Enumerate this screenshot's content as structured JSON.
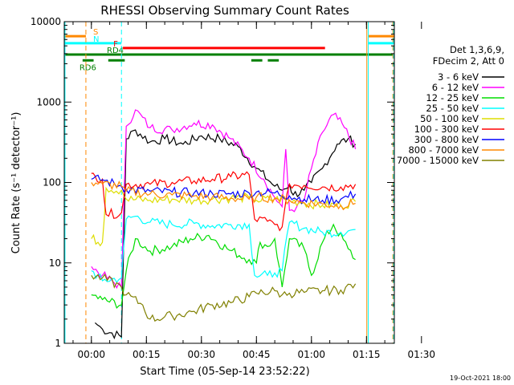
{
  "chart_data": {
    "type": "line",
    "title": "RHESSI Observing Summary Count Rates",
    "xlabel": "Start Time (05-Sep-14 23:52:22)",
    "ylabel": "Count Rate (s⁻¹ detector⁻¹)",
    "yscale": "log",
    "ylim": [
      1,
      10000
    ],
    "xlim_minutes_after_0000": [
      -7.4,
      82.6
    ],
    "y_ticks": [
      "1",
      "10",
      "100",
      "1000",
      "10000"
    ],
    "x_ticks": [
      {
        "m": 0,
        "label": "00:00"
      },
      {
        "m": 15,
        "label": "00:15"
      },
      {
        "m": 30,
        "label": "00:30"
      },
      {
        "m": 45,
        "label": "00:45"
      },
      {
        "m": 60,
        "label": "01:00"
      },
      {
        "m": 75,
        "label": "01:15"
      },
      {
        "m": 90,
        "label": "01:30"
      }
    ],
    "legend": {
      "header": [
        "Det 1,3,6,9,",
        "FDecim 2, Att 0"
      ],
      "placement": "right"
    },
    "footer_date": "19-Oct-2021 18:00",
    "series": [
      {
        "name": "3 - 6 keV",
        "color": "#000000",
        "points": [
          [
            1,
            1.8
          ],
          [
            3,
            1.5
          ],
          [
            8.2,
            1.2
          ],
          [
            9.5,
            350
          ],
          [
            12,
            450
          ],
          [
            16,
            320
          ],
          [
            20,
            350
          ],
          [
            25,
            300
          ],
          [
            30,
            380
          ],
          [
            35,
            350
          ],
          [
            40,
            280
          ],
          [
            45,
            150
          ],
          [
            50,
            90
          ],
          [
            52,
            80
          ],
          [
            54,
            95
          ],
          [
            55,
            70
          ],
          [
            58,
            80
          ],
          [
            60,
            100
          ],
          [
            63,
            150
          ],
          [
            67,
            300
          ],
          [
            70,
            350
          ],
          [
            72,
            300
          ]
        ]
      },
      {
        "name": "6 - 12 keV",
        "color": "#ff00ff",
        "points": [
          [
            0,
            9
          ],
          [
            3,
            7
          ],
          [
            8.2,
            5
          ],
          [
            9.5,
            500
          ],
          [
            12,
            800
          ],
          [
            16,
            480
          ],
          [
            22,
            450
          ],
          [
            28,
            550
          ],
          [
            33,
            520
          ],
          [
            38,
            350
          ],
          [
            43,
            200
          ],
          [
            47,
            110
          ],
          [
            50,
            65
          ],
          [
            52,
            50
          ],
          [
            53,
            260
          ],
          [
            54,
            45
          ],
          [
            56,
            50
          ],
          [
            58,
            60
          ],
          [
            60,
            150
          ],
          [
            63,
            420
          ],
          [
            66,
            700
          ],
          [
            69,
            480
          ],
          [
            72,
            260
          ]
        ]
      },
      {
        "name": "12 - 25 keV",
        "color": "#00dd00",
        "points": [
          [
            0,
            4
          ],
          [
            3,
            3.5
          ],
          [
            8.2,
            3
          ],
          [
            9.5,
            8
          ],
          [
            12,
            20
          ],
          [
            16,
            14
          ],
          [
            22,
            16
          ],
          [
            27,
            20
          ],
          [
            32,
            22
          ],
          [
            37,
            15
          ],
          [
            43,
            11
          ],
          [
            45,
            10
          ],
          [
            46,
            18
          ],
          [
            48,
            16
          ],
          [
            50,
            20
          ],
          [
            52,
            5
          ],
          [
            54,
            20
          ],
          [
            58,
            15
          ],
          [
            60,
            7
          ],
          [
            63,
            18
          ],
          [
            66,
            30
          ],
          [
            70,
            15
          ],
          [
            72,
            11
          ]
        ]
      },
      {
        "name": "25 - 50 keV",
        "color": "#00ffff",
        "points": [
          [
            0,
            8
          ],
          [
            3,
            6
          ],
          [
            8.2,
            6.5
          ],
          [
            9.5,
            35
          ],
          [
            12,
            38
          ],
          [
            16,
            32
          ],
          [
            22,
            30
          ],
          [
            28,
            31
          ],
          [
            33,
            29
          ],
          [
            38,
            30
          ],
          [
            43,
            30
          ],
          [
            44.5,
            7
          ],
          [
            48,
            7
          ],
          [
            50,
            7.5
          ],
          [
            52,
            8
          ],
          [
            54,
            32
          ],
          [
            58,
            27
          ],
          [
            63,
            24
          ],
          [
            68,
            24
          ],
          [
            72,
            26
          ]
        ]
      },
      {
        "name": "50 - 100 keV",
        "color": "#dddd00",
        "points": [
          [
            0,
            20
          ],
          [
            3,
            18
          ],
          [
            4,
            85
          ],
          [
            8.2,
            80
          ],
          [
            9.5,
            62
          ],
          [
            16,
            60
          ],
          [
            22,
            62
          ],
          [
            28,
            60
          ],
          [
            33,
            62
          ],
          [
            38,
            64
          ],
          [
            43,
            65
          ],
          [
            45,
            60
          ],
          [
            50,
            62
          ],
          [
            54,
            60
          ],
          [
            58,
            56
          ],
          [
            63,
            52
          ],
          [
            68,
            52
          ],
          [
            72,
            58
          ]
        ]
      },
      {
        "name": "100 - 300 keV",
        "color": "#ff0000",
        "points": [
          [
            0,
            130
          ],
          [
            1,
            120
          ],
          [
            3,
            110
          ],
          [
            4,
            40
          ],
          [
            8.2,
            42
          ],
          [
            9.5,
            95
          ],
          [
            16,
            95
          ],
          [
            22,
            100
          ],
          [
            28,
            105
          ],
          [
            33,
            110
          ],
          [
            38,
            118
          ],
          [
            43,
            125
          ],
          [
            44.5,
            35
          ],
          [
            48,
            33
          ],
          [
            50,
            30
          ],
          [
            52,
            28
          ],
          [
            54,
            95
          ],
          [
            58,
            92
          ],
          [
            63,
            88
          ],
          [
            68,
            88
          ],
          [
            72,
            95
          ]
        ]
      },
      {
        "name": "300 - 800 keV",
        "color": "#0000ff",
        "points": [
          [
            0,
            110
          ],
          [
            3,
            108
          ],
          [
            8.2,
            90
          ],
          [
            9.5,
            82
          ],
          [
            16,
            78
          ],
          [
            22,
            76
          ],
          [
            28,
            74
          ],
          [
            33,
            73
          ],
          [
            38,
            72
          ],
          [
            43,
            74
          ],
          [
            45,
            76
          ],
          [
            50,
            74
          ],
          [
            54,
            68
          ],
          [
            58,
            62
          ],
          [
            63,
            60
          ],
          [
            68,
            62
          ],
          [
            72,
            72
          ]
        ]
      },
      {
        "name": "800 - 7000 keV",
        "color": "#ff8800",
        "points": [
          [
            0,
            100
          ],
          [
            3,
            96
          ],
          [
            8.2,
            90
          ],
          [
            9.5,
            78
          ],
          [
            16,
            72
          ],
          [
            22,
            70
          ],
          [
            28,
            68
          ],
          [
            33,
            66
          ],
          [
            38,
            64
          ],
          [
            43,
            62
          ],
          [
            45,
            66
          ],
          [
            50,
            64
          ],
          [
            54,
            60
          ],
          [
            58,
            56
          ],
          [
            63,
            54
          ],
          [
            68,
            52
          ],
          [
            72,
            55
          ]
        ]
      },
      {
        "name": "7000 - 15000 keV",
        "color": "#808000",
        "points": [
          [
            0,
            7
          ],
          [
            3,
            6.5
          ],
          [
            8.2,
            5
          ],
          [
            9.5,
            4
          ],
          [
            14,
            3
          ],
          [
            16,
            2
          ],
          [
            22,
            2.2
          ],
          [
            28,
            2.5
          ],
          [
            33,
            3
          ],
          [
            38,
            3.2
          ],
          [
            43,
            3.8
          ],
          [
            45,
            4.2
          ],
          [
            50,
            4.5
          ],
          [
            52,
            4
          ],
          [
            54,
            4.2
          ],
          [
            58,
            4.3
          ],
          [
            63,
            4.5
          ],
          [
            68,
            4.6
          ],
          [
            72,
            5.5
          ]
        ]
      }
    ],
    "state_bars": [
      {
        "label": "S",
        "color": "#ff8800",
        "level": 6600,
        "segments": [
          [
            -7.4,
            -1.5
          ],
          [
            75.5,
            82.6
          ]
        ]
      },
      {
        "label": "N",
        "color": "#00ffff",
        "level": 5400,
        "segments": [
          [
            -7.4,
            8.2
          ],
          [
            75.5,
            82.6
          ]
        ]
      },
      {
        "label": "F",
        "color": "#ff0000",
        "level": 4700,
        "segments": [
          [
            8.6,
            63.7
          ]
        ]
      },
      {
        "label": "RD4",
        "color": "#008000",
        "level": 3900,
        "segments": [
          [
            -7.4,
            82.6
          ]
        ]
      },
      {
        "label": "RD6",
        "color": "#008000",
        "level": 3300,
        "segments": [
          [
            -2.4,
            0.6
          ],
          [
            4.6,
            9.1
          ],
          [
            43.6,
            46.6
          ],
          [
            48.1,
            51.1
          ]
        ]
      }
    ],
    "vertical_markers": [
      {
        "m": -7.2,
        "color": "#00ffff",
        "style": "solid"
      },
      {
        "m": -1.5,
        "color": "#ff8800",
        "style": "dashed"
      },
      {
        "m": 8.2,
        "color": "#00ffff",
        "style": "dashed"
      },
      {
        "m": 75.1,
        "color": "#ff8800",
        "style": "solid"
      },
      {
        "m": 75.5,
        "color": "#00ffff",
        "style": "solid"
      },
      {
        "m": 82.2,
        "color": "#ff8800",
        "style": "dashed"
      },
      {
        "m": 82.4,
        "color": "#00ffff",
        "style": "dashed"
      }
    ]
  }
}
